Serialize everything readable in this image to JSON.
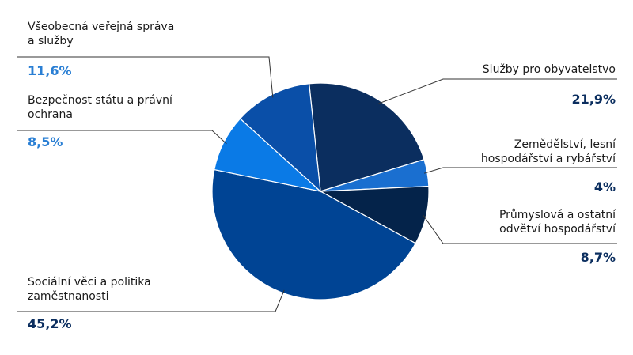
{
  "chart_data": {
    "type": "pie",
    "title": "",
    "slices": [
      {
        "label": "Služby pro obyvatelstvo",
        "value": 21.9,
        "value_label": "21,9%",
        "color": "#0b2e5f",
        "pct_color": "#0b2e5f"
      },
      {
        "label": "Zemědělství, lesní hospodářství a rybářství",
        "value": 4.0,
        "value_label": "4%",
        "color": "#1a6fd0",
        "pct_color": "#0b2e5f"
      },
      {
        "label": "Průmyslová a ostatní odvětví hospodářství",
        "value": 8.7,
        "value_label": "8,7%",
        "color": "#04234a",
        "pct_color": "#0b2e5f"
      },
      {
        "label": "Sociální věci a politika zaměstnanosti",
        "value": 45.2,
        "value_label": "45,2%",
        "color": "#004494",
        "pct_color": "#0b2e5f"
      },
      {
        "label": "Bezpečnost státu a právní ochrana",
        "value": 8.5,
        "value_label": "8,5%",
        "color": "#0a7ae6",
        "pct_color": "#2a7fd4"
      },
      {
        "label": "Všeobecná veřejná správa a služby",
        "value": 11.6,
        "value_label": "11,6%",
        "color": "#0a4fa8",
        "pct_color": "#2a7fd4"
      }
    ]
  }
}
